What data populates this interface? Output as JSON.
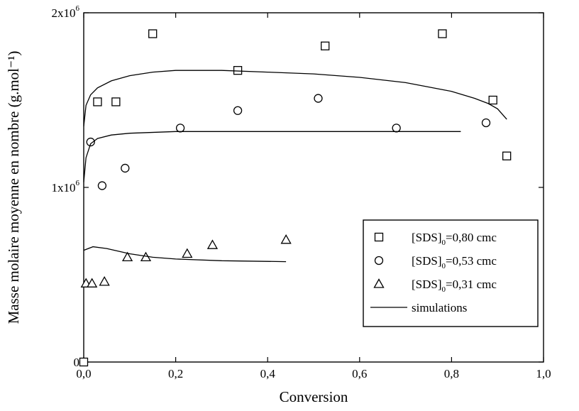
{
  "chart_data": {
    "type": "scatter",
    "xlabel": "Conversion",
    "ylabel": "Masse molaire moyenne en nombre (g.mol⁻¹)",
    "xlim": [
      0,
      1.0
    ],
    "ylim": [
      0,
      2000000
    ],
    "x_ticks": [
      {
        "value": 0.0,
        "label": "0,0"
      },
      {
        "value": 0.2,
        "label": "0,2"
      },
      {
        "value": 0.4,
        "label": "0,4"
      },
      {
        "value": 0.6,
        "label": "0,6"
      },
      {
        "value": 0.8,
        "label": "0,8"
      },
      {
        "value": 1.0,
        "label": "1,0"
      }
    ],
    "y_ticks": [
      {
        "value": 0,
        "label": "0",
        "exp": ""
      },
      {
        "value": 1000000,
        "label": "1x10",
        "exp": "6"
      },
      {
        "value": 2000000,
        "label": "2x10",
        "exp": "6"
      }
    ],
    "legend_position": "bottom-right",
    "series": [
      {
        "name": "[SDS]0=0,80 cmc",
        "name_main": "[SDS]",
        "name_sub": "0",
        "name_rest": "=0,80 cmc",
        "marker": "square",
        "points": [
          [
            0.0,
            0
          ],
          [
            0.03,
            1490000
          ],
          [
            0.07,
            1490000
          ],
          [
            0.15,
            1880000
          ],
          [
            0.335,
            1670000
          ],
          [
            0.525,
            1810000
          ],
          [
            0.78,
            1880000
          ],
          [
            0.89,
            1500000
          ],
          [
            0.92,
            1180000
          ]
        ]
      },
      {
        "name": "[SDS]0=0,53 cmc",
        "name_main": "[SDS]",
        "name_sub": "0",
        "name_rest": "=0,53 cmc",
        "marker": "circle",
        "points": [
          [
            0.015,
            1260000
          ],
          [
            0.04,
            1010000
          ],
          [
            0.09,
            1110000
          ],
          [
            0.21,
            1340000
          ],
          [
            0.335,
            1440000
          ],
          [
            0.51,
            1510000
          ],
          [
            0.68,
            1340000
          ],
          [
            0.875,
            1370000
          ]
        ]
      },
      {
        "name": "[SDS]0=0,31 cmc",
        "name_main": "[SDS]",
        "name_sub": "0",
        "name_rest": "=0,31 cmc",
        "marker": "triangle",
        "points": [
          [
            0.005,
            450000
          ],
          [
            0.018,
            450000
          ],
          [
            0.045,
            460000
          ],
          [
            0.095,
            600000
          ],
          [
            0.135,
            600000
          ],
          [
            0.225,
            620000
          ],
          [
            0.28,
            670000
          ],
          [
            0.44,
            700000
          ]
        ]
      },
      {
        "name": "simulations",
        "marker": "line",
        "curves": [
          [
            [
              0.0,
              1350000
            ],
            [
              0.005,
              1470000
            ],
            [
              0.015,
              1530000
            ],
            [
              0.03,
              1570000
            ],
            [
              0.06,
              1610000
            ],
            [
              0.1,
              1640000
            ],
            [
              0.15,
              1660000
            ],
            [
              0.2,
              1670000
            ],
            [
              0.3,
              1670000
            ],
            [
              0.4,
              1660000
            ],
            [
              0.5,
              1650000
            ],
            [
              0.6,
              1630000
            ],
            [
              0.7,
              1600000
            ],
            [
              0.8,
              1550000
            ],
            [
              0.85,
              1510000
            ],
            [
              0.88,
              1480000
            ],
            [
              0.9,
              1450000
            ],
            [
              0.92,
              1390000
            ]
          ],
          [
            [
              0.0,
              1030000
            ],
            [
              0.005,
              1170000
            ],
            [
              0.015,
              1250000
            ],
            [
              0.03,
              1280000
            ],
            [
              0.06,
              1300000
            ],
            [
              0.1,
              1310000
            ],
            [
              0.2,
              1320000
            ],
            [
              0.4,
              1320000
            ],
            [
              0.6,
              1320000
            ],
            [
              0.82,
              1320000
            ]
          ],
          [
            [
              0.0,
              640000
            ],
            [
              0.02,
              660000
            ],
            [
              0.05,
              650000
            ],
            [
              0.1,
              620000
            ],
            [
              0.15,
              600000
            ],
            [
              0.2,
              590000
            ],
            [
              0.3,
              580000
            ],
            [
              0.44,
              575000
            ]
          ]
        ]
      }
    ]
  }
}
